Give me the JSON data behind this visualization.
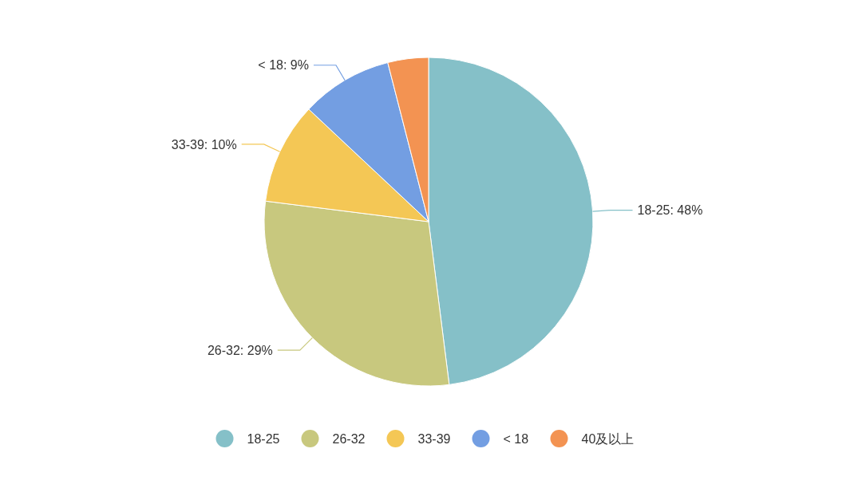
{
  "chart_data": {
    "type": "pie",
    "categories": [
      "18-25",
      "26-32",
      "33-39",
      "< 18",
      "40及以上"
    ],
    "values": [
      48,
      29,
      10,
      9,
      4
    ],
    "colors": [
      "#85c0c8",
      "#c8c87e",
      "#f4c755",
      "#739ee2",
      "#f39352"
    ],
    "value_labels": [
      "18-25: 48%",
      "26-32: 29%",
      "33-39: 10%",
      "< 18: 9%",
      null
    ],
    "legend": "bottom"
  }
}
